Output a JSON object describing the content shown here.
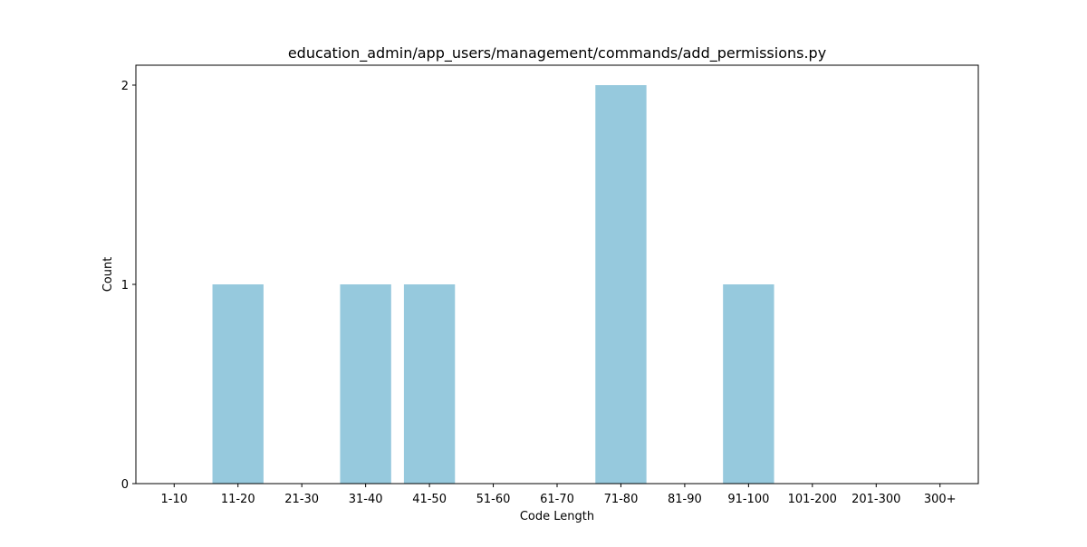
{
  "chart_data": {
    "type": "bar",
    "title": "education_admin/app_users/management/commands/add_permissions.py",
    "xlabel": "Code Length",
    "ylabel": "Count",
    "categories": [
      "1-10",
      "11-20",
      "21-30",
      "31-40",
      "41-50",
      "51-60",
      "61-70",
      "71-80",
      "81-90",
      "91-100",
      "101-200",
      "201-300",
      "300+"
    ],
    "values": [
      0,
      1,
      0,
      1,
      1,
      0,
      0,
      2,
      0,
      1,
      0,
      0,
      0
    ],
    "yticks": [
      0,
      1,
      2
    ],
    "ylim": [
      0,
      2.1
    ],
    "grid": false,
    "legend": "none",
    "bar_color": "#96c9dd"
  }
}
